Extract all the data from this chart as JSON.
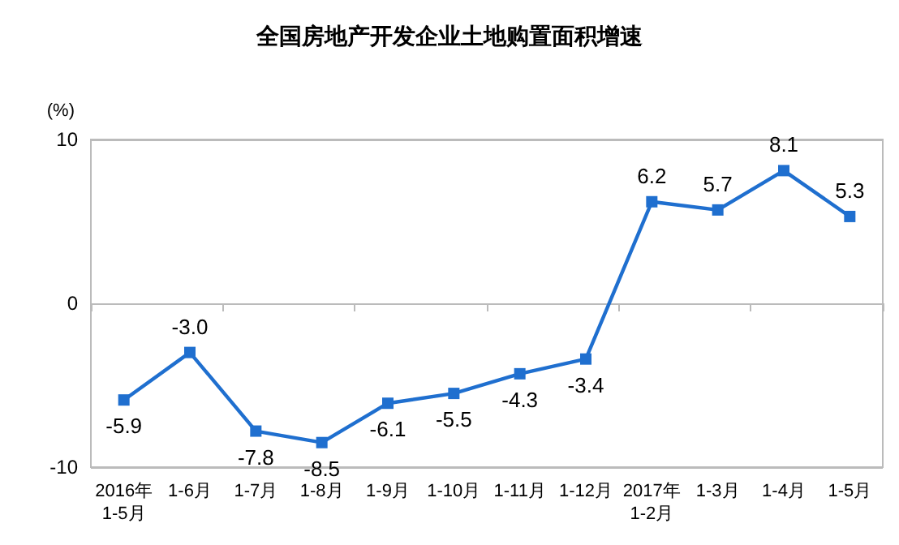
{
  "chart_data": {
    "type": "line",
    "title": "全国房地产开发企业土地购置面积增速",
    "ylabel": "(%)",
    "categories": [
      "2016年\n1-5月",
      "1-6月",
      "1-7月",
      "1-8月",
      "1-9月",
      "1-10月",
      "1-11月",
      "1-12月",
      "2017年\n1-2月",
      "1-3月",
      "1-4月",
      "1-5月"
    ],
    "series": [
      {
        "color": "#1f6fcf",
        "values": [
          -5.9,
          -3.0,
          -7.8,
          -8.5,
          -6.1,
          -5.5,
          -4.3,
          -3.4,
          6.2,
          5.7,
          8.1,
          5.3
        ],
        "value_labels": [
          "-5.9",
          "-3.0",
          "-7.8",
          "-8.5",
          "-6.1",
          "-5.5",
          "-4.3",
          "-3.4",
          "6.2",
          "5.7",
          "8.1",
          "5.3"
        ]
      }
    ],
    "ylim": [
      -10,
      10
    ],
    "yticks": [
      -10,
      0,
      10
    ],
    "grid": "y",
    "marker": "square",
    "line_style": "solid"
  }
}
